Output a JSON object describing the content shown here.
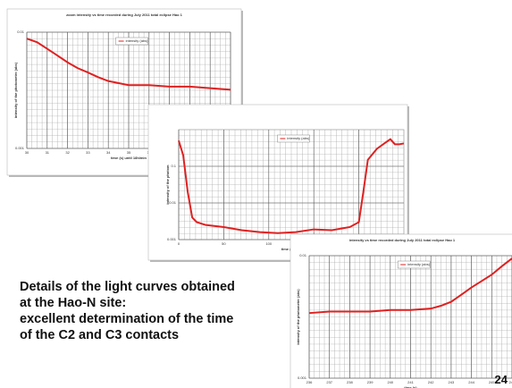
{
  "chart_data": [
    {
      "type": "line",
      "title": "zoom intensity vs time recorded during July 2011 total eclipse Hao 1",
      "xlabel": "time (s) until 18h/min",
      "ylabel": "intensity of the photometer (abs)",
      "x": [
        30,
        30.5,
        31,
        31.5,
        32,
        32.5,
        33,
        33.5,
        34,
        35,
        36,
        37,
        38,
        39,
        40
      ],
      "series": [
        {
          "name": "intensity (abs)",
          "color": "#e02020",
          "values": [
            0.0088,
            0.0082,
            0.0072,
            0.0063,
            0.0055,
            0.0049,
            0.0045,
            0.0041,
            0.0038,
            0.0035,
            0.0035,
            0.0034,
            0.0034,
            0.0033,
            0.0032
          ]
        }
      ],
      "xlim": [
        30,
        40
      ],
      "xticks": [
        30,
        31,
        32,
        33,
        34,
        35,
        36,
        37,
        38,
        39,
        40
      ],
      "ylim": [
        0.001,
        0.01
      ],
      "yticks": [
        0.001,
        0.01
      ],
      "log_y": true,
      "grid": true
    },
    {
      "type": "line",
      "xlabel": "time (s) add",
      "ylabel": "intensity of the photom",
      "x": [
        0,
        5,
        10,
        15,
        20,
        30,
        50,
        70,
        90,
        110,
        130,
        150,
        170,
        190,
        200,
        205,
        210,
        220,
        230,
        235,
        240,
        245,
        250
      ],
      "series": [
        {
          "name": "intensity (abs)",
          "color": "#e02020",
          "values": [
            0.5,
            0.2,
            0.02,
            0.004,
            0.003,
            0.0025,
            0.0022,
            0.0018,
            0.0016,
            0.0015,
            0.0016,
            0.0019,
            0.0018,
            0.0022,
            0.003,
            0.02,
            0.15,
            0.3,
            0.45,
            0.55,
            0.4,
            0.4,
            0.42
          ]
        }
      ],
      "xlim": [
        0,
        250
      ],
      "xticks": [
        0,
        50,
        100,
        150,
        200
      ],
      "ylim": [
        0.001,
        1
      ],
      "yticks": [
        0.001,
        0.01,
        0.1
      ],
      "log_y": true,
      "grid": true
    },
    {
      "type": "line",
      "title": "intensity vs time recorded during July 2011 total eclipse Hao 1",
      "xlabel": "time (s)",
      "ylabel": "intensity of the photometer (abs)",
      "x": [
        236,
        237,
        238,
        239,
        240,
        241,
        242,
        242.5,
        243,
        243.5,
        244,
        244.5,
        245,
        245.5,
        246
      ],
      "series": [
        {
          "name": "intensity (abs)",
          "color": "#e02020",
          "values": [
            0.0034,
            0.0035,
            0.0035,
            0.0035,
            0.0036,
            0.0036,
            0.0037,
            0.0039,
            0.0042,
            0.0048,
            0.0055,
            0.0062,
            0.007,
            0.0082,
            0.0095
          ]
        }
      ],
      "xlim": [
        236,
        246
      ],
      "xticks": [
        236,
        237,
        238,
        239,
        240,
        241,
        242,
        243,
        244,
        245,
        246
      ],
      "ylim": [
        0.001,
        0.01
      ],
      "yticks": [
        0.001,
        0.01
      ],
      "log_y": true,
      "grid": true
    }
  ],
  "text": [
    "Details of the light curves obtained",
    "at the Hao-N site:",
    "excellent determination of the time",
    "of the C2 and C3 contacts"
  ],
  "page_number": "24"
}
